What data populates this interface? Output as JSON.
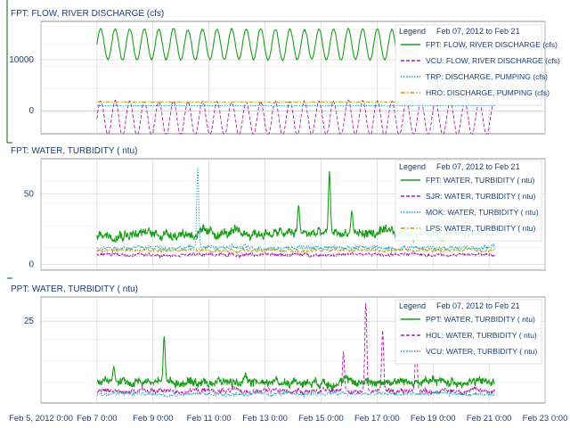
{
  "colors": {
    "green": "#1a9e1a",
    "magenta": "#b01aa8",
    "teal": "#1aa0b8",
    "olive": "#b8a01a",
    "title": "#1c3d7a",
    "grid": "#cfcfcf",
    "panel_border": "#7a7a7a",
    "left_rule": "#2e7d32"
  },
  "x_axis": {
    "ticks": [
      "Feb 5, 2012 0:00",
      "Feb 7 0:00",
      "Feb 9 0:00",
      "Feb 11 0:00",
      "Feb 13 0:00",
      "Feb 15 0:00",
      "Feb 17 0:00",
      "Feb 19 0:00",
      "Feb 21 0:00",
      "Feb 23 0:00"
    ],
    "range_days": [
      5,
      23
    ]
  },
  "chart_data": [
    {
      "type": "line",
      "title": "FPT: FLOW, RIVER DISCHARGE (cfs)",
      "ylim": [
        -4500,
        17500
      ],
      "yticks": [
        {
          "value": 10000,
          "label": "10000"
        },
        {
          "value": 0,
          "label": "0"
        }
      ],
      "legend": {
        "title": "Legend",
        "range": "Feb 07, 2012 to Feb 21",
        "placement": "top-right"
      },
      "series": [
        {
          "name": "FPT: FLOW, RIVER DISCHARGE (cfs)",
          "color": "green",
          "dash": "solid",
          "x_start": 7,
          "x_end": 18.4,
          "base": 13000,
          "amp": 3000,
          "period": 0.52,
          "noise": 250
        },
        {
          "name": "VCU: FLOW, RIVER DISCHARGE (cfs)",
          "color": "magenta",
          "dash": "dashed",
          "x_start": 7,
          "x_end": 21.2,
          "base": -1500,
          "amp": 3300,
          "period": 0.52,
          "noise": 300
        },
        {
          "name": "TRP: DISCHARGE, PUMPING (cfs)",
          "color": "teal",
          "dash": "dotted",
          "x_start": 7,
          "x_end": 21.2,
          "base": 1000,
          "amp": 0,
          "period": 1,
          "noise": 60
        },
        {
          "name": "HRO: DISCHARGE, PUMPING (cfs)",
          "color": "olive",
          "dash": "dashdot",
          "x_start": 7,
          "x_end": 21.2,
          "base": 1700,
          "amp": 0,
          "period": 1,
          "noise": 60
        }
      ]
    },
    {
      "type": "line",
      "title": "FPT: WATER, TURBIDITY ( ntu)",
      "ylim": [
        -4,
        75
      ],
      "yticks": [
        {
          "value": 50,
          "label": "50"
        },
        {
          "value": 0,
          "label": "0"
        }
      ],
      "legend": {
        "title": "Legend",
        "range": "Feb 07, 2012 to Feb 21",
        "placement": "top-right"
      },
      "series": [
        {
          "name": "FPT: WATER, TURBIDITY ( ntu)",
          "color": "green",
          "dash": "solid",
          "x_start": 7,
          "x_end": 21.2,
          "base": 22,
          "amp": 0,
          "period": 1,
          "noise": 5,
          "spikes": [
            [
              15.3,
              66
            ],
            [
              14.2,
              42
            ],
            [
              16.1,
              38
            ]
          ]
        },
        {
          "name": "SJR: WATER, TURBIDITY ( ntu)",
          "color": "magenta",
          "dash": "dashed",
          "x_start": 7,
          "x_end": 21.2,
          "base": 7,
          "amp": 0,
          "period": 1,
          "noise": 1.5
        },
        {
          "name": "MOK: WATER, TURBIDITY ( ntu)",
          "color": "teal",
          "dash": "dotted",
          "x_start": 7,
          "x_end": 21.2,
          "base": 12,
          "amp": 0,
          "period": 1,
          "noise": 2,
          "spikes": [
            [
              10.6,
              69
            ]
          ]
        },
        {
          "name": "LPS: WATER, TURBIDITY ( ntu)",
          "color": "olive",
          "dash": "dashdot",
          "x_start": 7,
          "x_end": 21.2,
          "base": 10,
          "amp": 0,
          "period": 1,
          "noise": 1.5
        }
      ]
    },
    {
      "type": "line",
      "title": "PPT: WATER, TURBIDITY ( ntu)",
      "ylim": [
        -2,
        33
      ],
      "yticks": [
        {
          "value": 25,
          "label": "25"
        }
      ],
      "legend": {
        "title": "Legend",
        "range": "Feb 07, 2012 to Feb 21",
        "placement": "top-right"
      },
      "series": [
        {
          "name": "PPT: WATER, TURBIDITY ( ntu)",
          "color": "green",
          "dash": "solid",
          "x_start": 7,
          "x_end": 21.2,
          "base": 5,
          "amp": 0,
          "period": 1,
          "noise": 2,
          "spikes": [
            [
              9.4,
              20
            ],
            [
              7.6,
              10
            ]
          ]
        },
        {
          "name": "HOL: WATER, TURBIDITY ( ntu)",
          "color": "magenta",
          "dash": "dashed",
          "x_start": 7,
          "x_end": 21.2,
          "base": 2,
          "amp": 0,
          "period": 1,
          "noise": 1.2,
          "spikes": [
            [
              16.6,
              31
            ],
            [
              17.2,
              22
            ],
            [
              18.4,
              20
            ],
            [
              15.8,
              15
            ]
          ]
        },
        {
          "name": "VCU: WATER, TURBIDITY ( ntu)",
          "color": "teal",
          "dash": "dotted",
          "x_start": 7,
          "x_end": 21.2,
          "base": 1,
          "amp": 0,
          "period": 1,
          "noise": 0.8
        }
      ]
    }
  ]
}
